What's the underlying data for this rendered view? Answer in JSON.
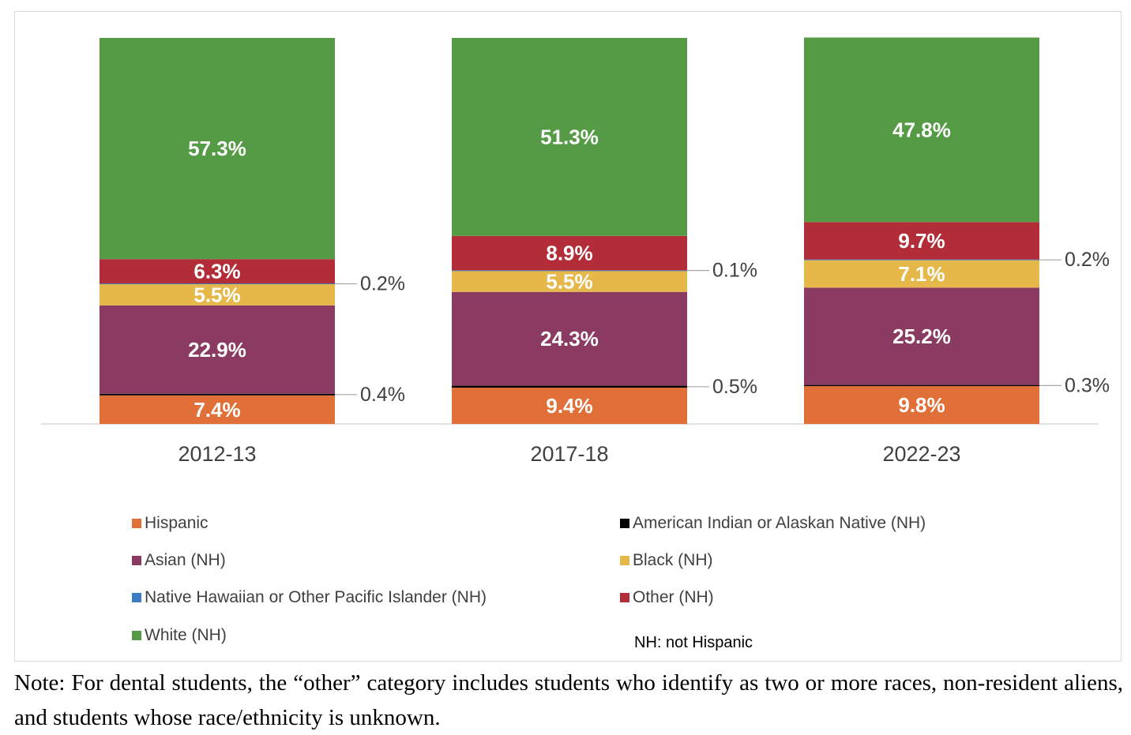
{
  "chart_data": {
    "type": "bar",
    "stacked": true,
    "ylim": [
      0,
      100
    ],
    "categories": [
      "2012-13",
      "2017-18",
      "2022-23"
    ],
    "series": [
      {
        "name": "Hispanic",
        "color": "#E07038",
        "values": [
          7.4,
          9.4,
          9.8
        ],
        "labels": [
          "7.4%",
          "9.4%",
          "9.8%"
        ]
      },
      {
        "name": "American Indian or Alaskan Native (NH)",
        "color": "#000000",
        "values": [
          0.4,
          0.5,
          0.3
        ],
        "labels": [
          "0.4%",
          "0.5%",
          "0.3%"
        ]
      },
      {
        "name": "Asian (NH)",
        "color": "#8B3A62",
        "values": [
          22.9,
          24.3,
          25.2
        ],
        "labels": [
          "22.9%",
          "24.3%",
          "25.2%"
        ]
      },
      {
        "name": "Black (NH)",
        "color": "#E6B84A",
        "values": [
          5.5,
          5.5,
          7.1
        ],
        "labels": [
          "5.5%",
          "5.5%",
          "7.1%"
        ]
      },
      {
        "name": "Native Hawaiian or Other Pacific Islander (NH)",
        "color": "#3A7DC4",
        "values": [
          0.2,
          0.1,
          0.2
        ],
        "labels": [
          "0.2%",
          "0.1%",
          "0.2%"
        ]
      },
      {
        "name": "Other (NH)",
        "color": "#B32D38",
        "values": [
          6.3,
          8.9,
          9.7
        ],
        "labels": [
          "6.3%",
          "8.9%",
          "9.7%"
        ]
      },
      {
        "name": "White (NH)",
        "color": "#559A45",
        "values": [
          57.3,
          51.3,
          47.8
        ],
        "labels": [
          "57.3%",
          "51.3%",
          "47.8%"
        ]
      }
    ],
    "legend_note": "NH: not Hispanic"
  },
  "note": "Note: For dental students, the “other” category includes students who identify as two or more races, non-resident aliens, and students whose race/ethnicity is unknown."
}
